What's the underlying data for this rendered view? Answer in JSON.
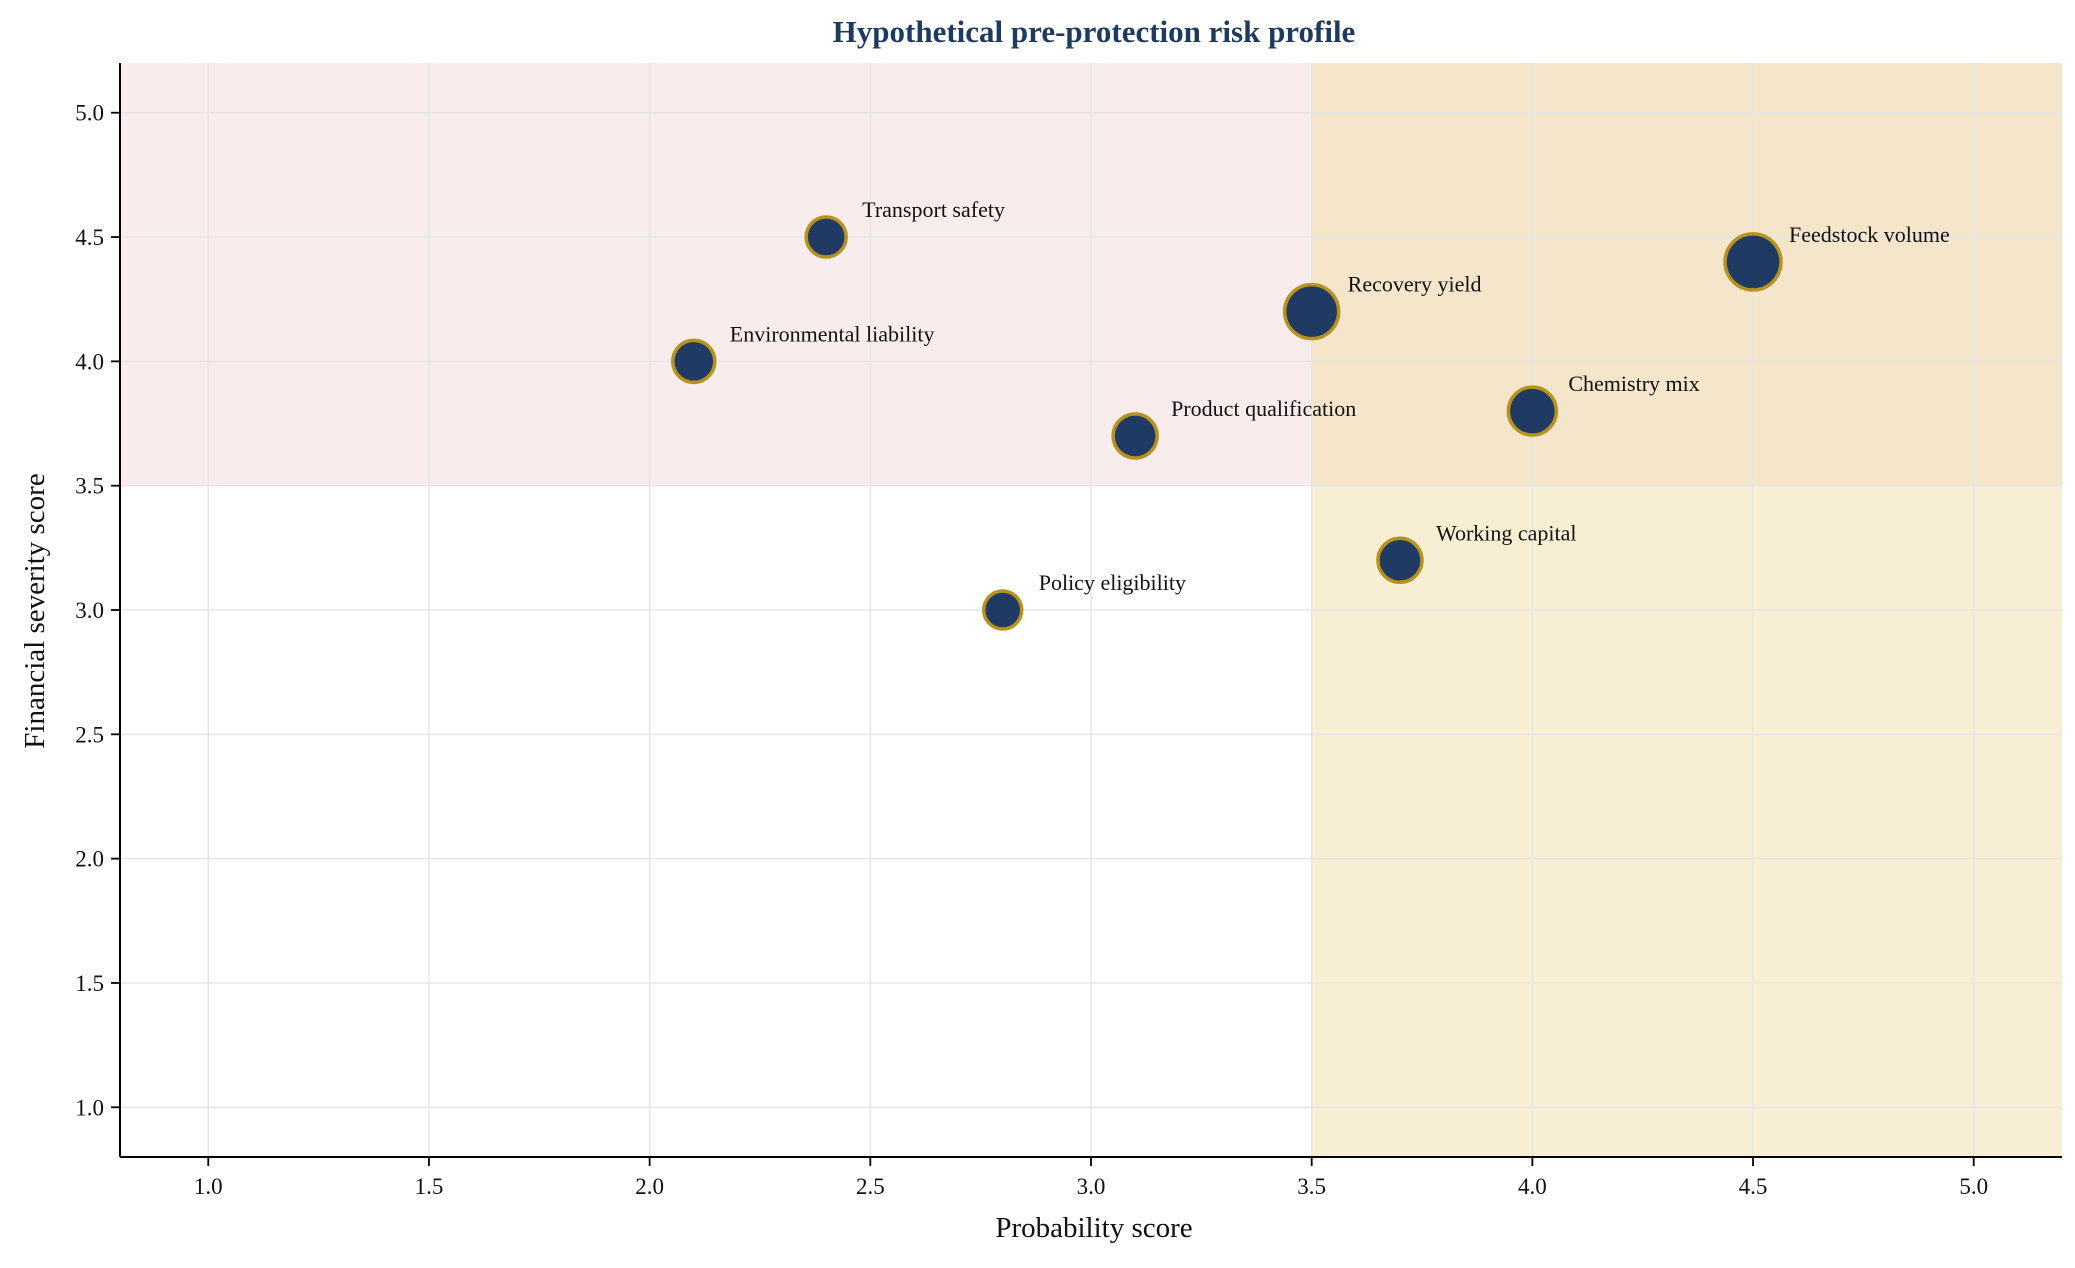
{
  "chart_data": {
    "type": "scatter",
    "title": "Hypothetical pre-protection risk profile",
    "xlabel": "Probability score",
    "ylabel": "Financial severity score",
    "xlim": [
      0.8,
      5.2
    ],
    "ylim": [
      0.8,
      5.2
    ],
    "x_ticks": [
      "1.0",
      "1.5",
      "2.0",
      "2.5",
      "3.0",
      "3.5",
      "4.0",
      "4.5",
      "5.0"
    ],
    "y_ticks": [
      "1.0",
      "1.5",
      "2.0",
      "2.5",
      "3.0",
      "3.5",
      "4.0",
      "4.5",
      "5.0"
    ],
    "grid": true,
    "regions": [
      {
        "x_min": 0.8,
        "x_max": 5.2,
        "y_min": 3.5,
        "y_max": 5.2,
        "color": "#f3dcdc"
      },
      {
        "x_min": 3.5,
        "x_max": 5.2,
        "y_min": 0.8,
        "y_max": 5.2,
        "color": "#f0e0b0"
      }
    ],
    "points": [
      {
        "label": "Transport safety",
        "x": 2.4,
        "y": 4.5,
        "size": 1.0
      },
      {
        "label": "Environmental liability",
        "x": 2.1,
        "y": 4.0,
        "size": 1.05
      },
      {
        "label": "Product qualification",
        "x": 3.1,
        "y": 3.7,
        "size": 1.1
      },
      {
        "label": "Policy eligibility",
        "x": 2.8,
        "y": 3.0,
        "size": 0.95
      },
      {
        "label": "Recovery yield",
        "x": 3.5,
        "y": 4.2,
        "size": 1.35
      },
      {
        "label": "Working capital",
        "x": 3.7,
        "y": 3.2,
        "size": 1.1
      },
      {
        "label": "Chemistry mix",
        "x": 4.0,
        "y": 3.8,
        "size": 1.2
      },
      {
        "label": "Feedstock volume",
        "x": 4.5,
        "y": 4.4,
        "size": 1.4
      }
    ],
    "colors": {
      "title": "#1f3a5f",
      "marker_fill": "#1f3a63",
      "marker_edge": "#b8921e",
      "grid": "#e6e6e6"
    }
  }
}
